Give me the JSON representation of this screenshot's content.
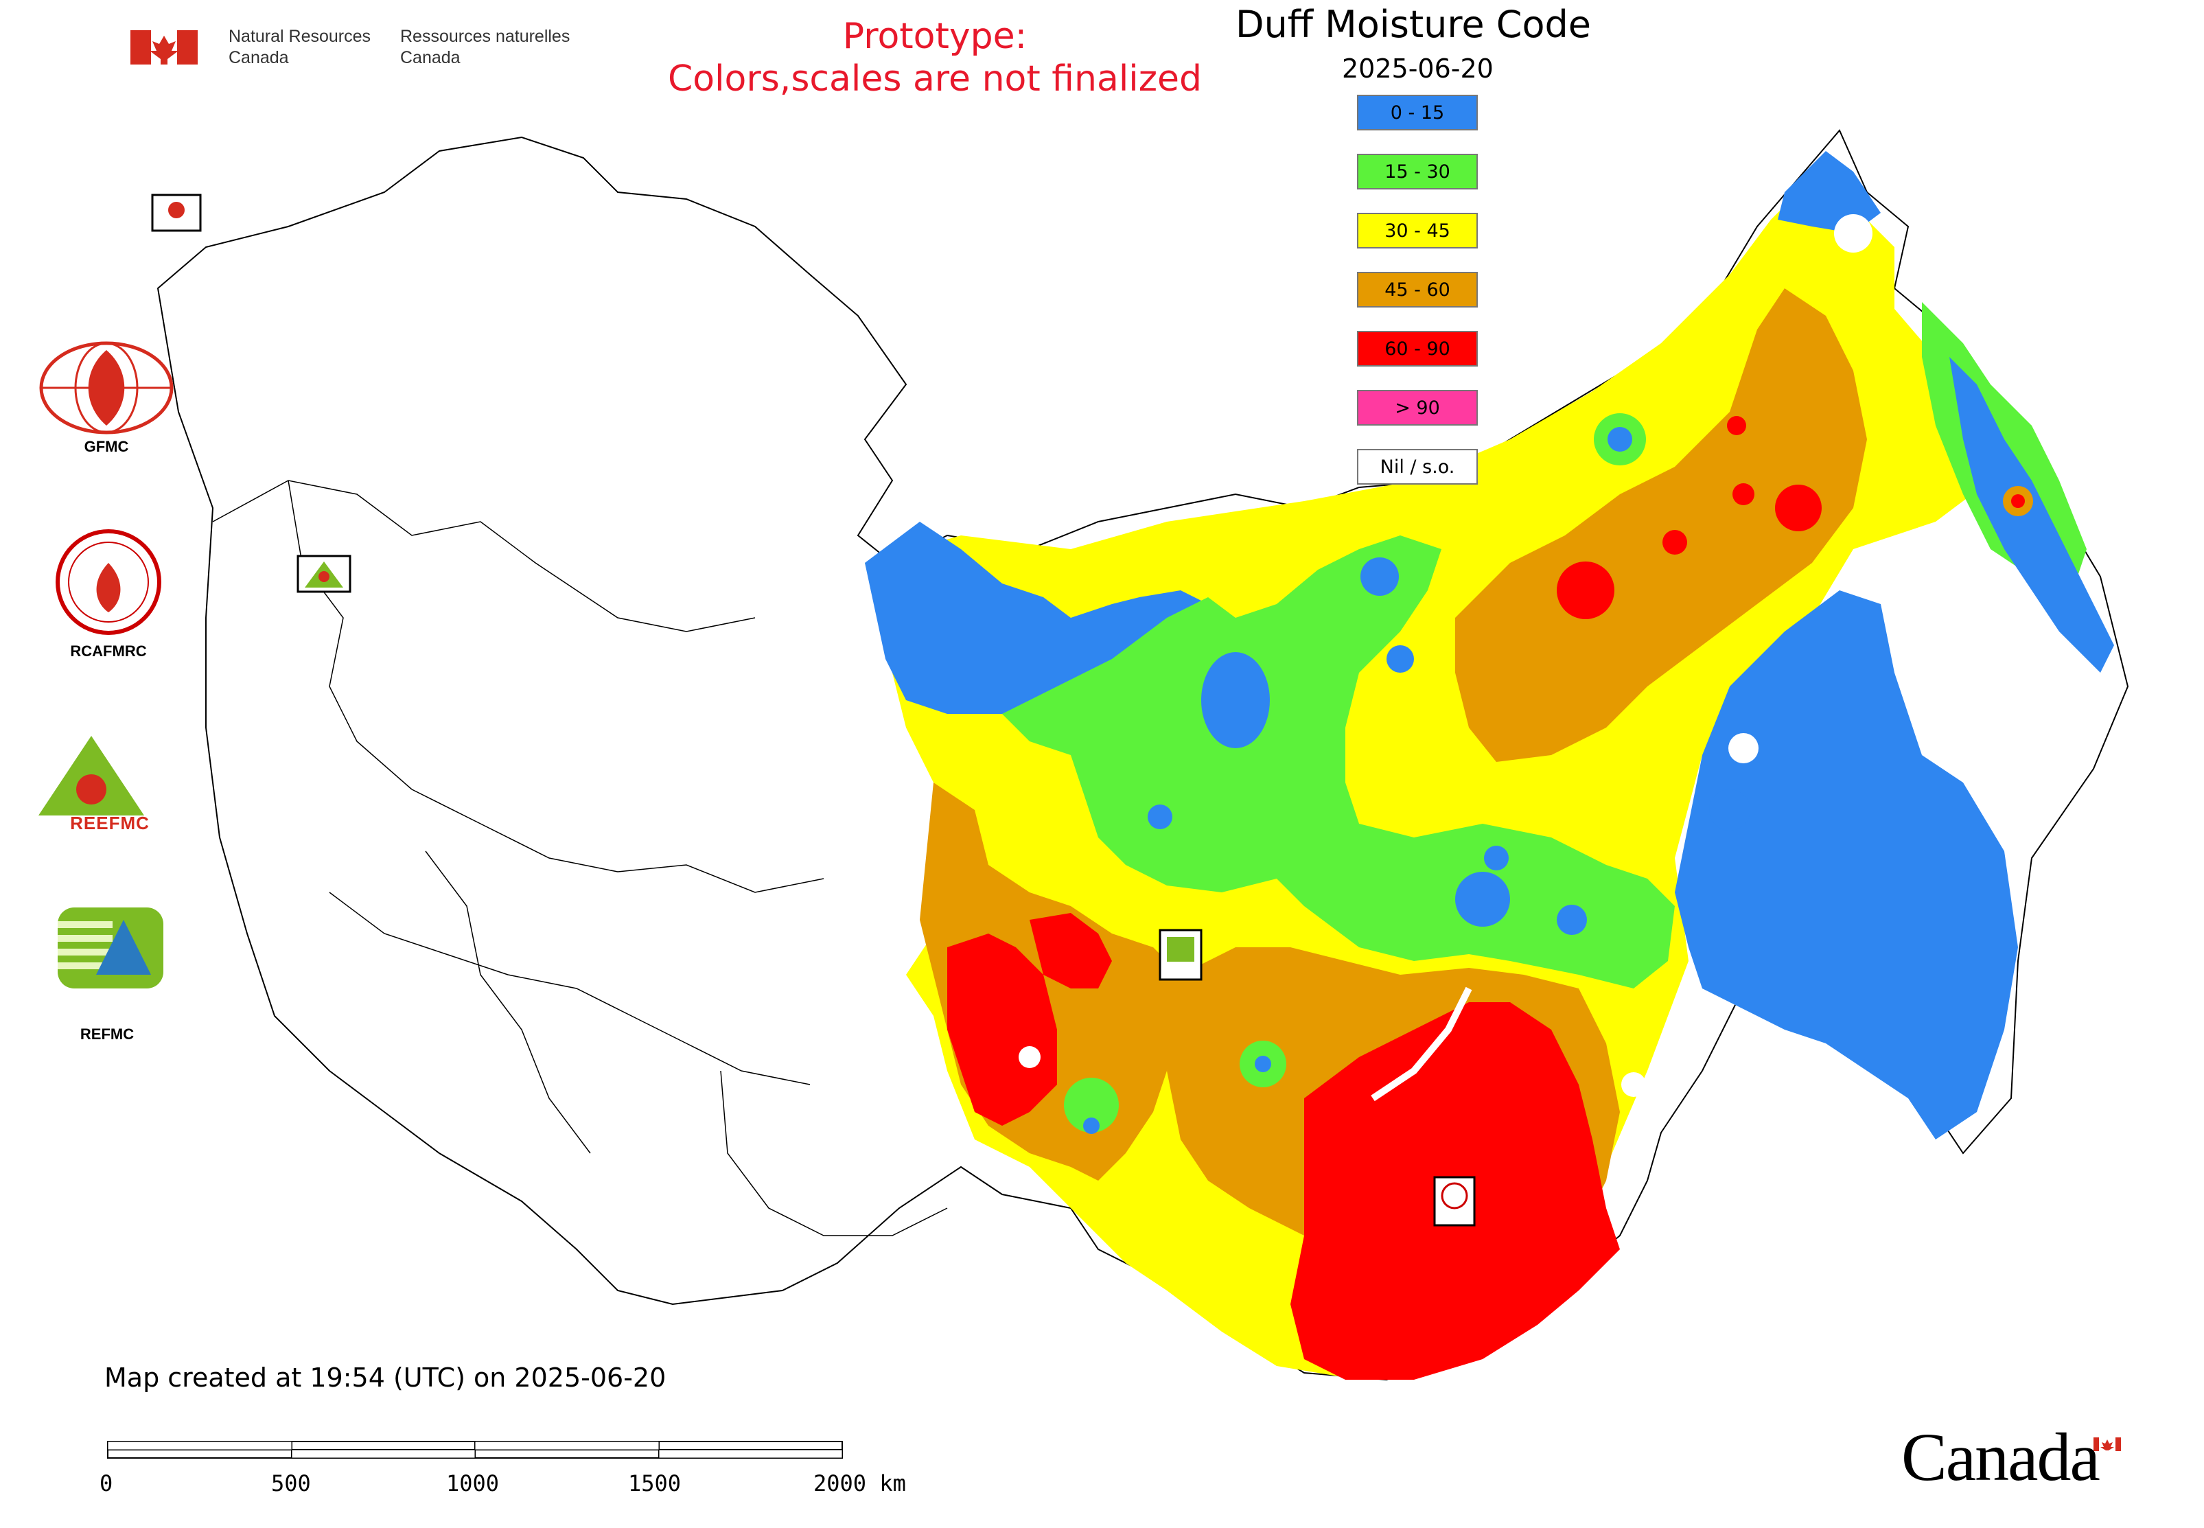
{
  "header": {
    "department_en_line1": "Natural Resources",
    "department_en_line2": "Canada",
    "department_fr_line1": "Ressources naturelles",
    "department_fr_line2": "Canada",
    "prototype_line1": "Prototype:",
    "prototype_line2": "Colors,scales are not finalized"
  },
  "map": {
    "title": "Duff Moisture Code",
    "date": "2025-06-20",
    "footer_note": "Map created at 19:54 (UTC) on 2025-06-20",
    "wordmark": "Canada"
  },
  "legend": [
    {
      "label": "0 - 15",
      "color": "#2f86f0"
    },
    {
      "label": "15 - 30",
      "color": "#5cf23a"
    },
    {
      "label": "30 - 45",
      "color": "#ffff00"
    },
    {
      "label": "45 - 60",
      "color": "#e59a00"
    },
    {
      "label": "60 - 90",
      "color": "#ff0000"
    },
    {
      "label": "> 90",
      "color": "#ff3aa0"
    },
    {
      "label": "Nil / s.o.",
      "color": "#ffffff"
    }
  ],
  "logos": [
    {
      "label": "GFMC"
    },
    {
      "label": "RCAFMRC"
    },
    {
      "label": "REEFMC"
    },
    {
      "label": "REFMC"
    }
  ],
  "scale_bar": {
    "ticks": [
      "0",
      "500",
      "1000",
      "1500",
      "2000 km"
    ]
  },
  "colors": {
    "prototype_red": "#e8182b",
    "canada_flag_red": "#d52b1e",
    "outline": "#000000"
  }
}
